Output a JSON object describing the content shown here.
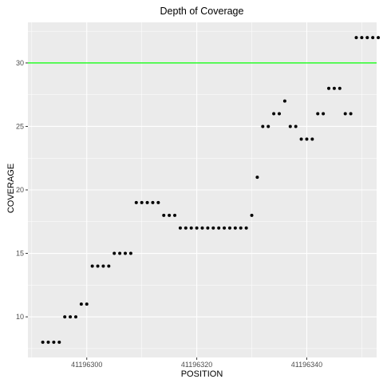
{
  "chart_data": {
    "type": "scatter",
    "title": "Depth of Coverage",
    "xlabel": "POSITION",
    "ylabel": "COVERAGE",
    "xlim": [
      41196289.3,
      41196352.7
    ],
    "ylim": [
      6.8,
      33.2
    ],
    "x_ticks": [
      41196300,
      41196320,
      41196340
    ],
    "x_tick_labels": [
      "41196300",
      "41196320",
      "41196340"
    ],
    "y_ticks": [
      10,
      15,
      20,
      25,
      30
    ],
    "y_tick_labels": [
      "10",
      "15",
      "20",
      "25",
      "30"
    ],
    "grid": true,
    "reference_line": {
      "y": 30,
      "color": "#00ff00"
    },
    "point_color": "#000000",
    "panel_background": "#ebebeb",
    "gridline_color": "#ffffff",
    "points": [
      [
        41196292,
        8
      ],
      [
        41196293,
        8
      ],
      [
        41196294,
        8
      ],
      [
        41196295,
        8
      ],
      [
        41196296,
        10
      ],
      [
        41196297,
        10
      ],
      [
        41196298,
        10
      ],
      [
        41196299,
        11
      ],
      [
        41196300,
        11
      ],
      [
        41196301,
        14
      ],
      [
        41196302,
        14
      ],
      [
        41196303,
        14
      ],
      [
        41196304,
        14
      ],
      [
        41196305,
        15
      ],
      [
        41196306,
        15
      ],
      [
        41196307,
        15
      ],
      [
        41196308,
        15
      ],
      [
        41196309,
        19
      ],
      [
        41196310,
        19
      ],
      [
        41196311,
        19
      ],
      [
        41196312,
        19
      ],
      [
        41196313,
        19
      ],
      [
        41196314,
        18
      ],
      [
        41196315,
        18
      ],
      [
        41196316,
        18
      ],
      [
        41196317,
        17
      ],
      [
        41196318,
        17
      ],
      [
        41196319,
        17
      ],
      [
        41196320,
        17
      ],
      [
        41196321,
        17
      ],
      [
        41196322,
        17
      ],
      [
        41196323,
        17
      ],
      [
        41196324,
        17
      ],
      [
        41196325,
        17
      ],
      [
        41196326,
        17
      ],
      [
        41196327,
        17
      ],
      [
        41196328,
        17
      ],
      [
        41196329,
        17
      ],
      [
        41196330,
        18
      ],
      [
        41196331,
        21
      ],
      [
        41196332,
        25
      ],
      [
        41196333,
        25
      ],
      [
        41196334,
        26
      ],
      [
        41196335,
        26
      ],
      [
        41196336,
        27
      ],
      [
        41196337,
        25
      ],
      [
        41196338,
        25
      ],
      [
        41196339,
        24
      ],
      [
        41196340,
        24
      ],
      [
        41196341,
        24
      ],
      [
        41196342,
        26
      ],
      [
        41196343,
        26
      ],
      [
        41196344,
        28
      ],
      [
        41196345,
        28
      ],
      [
        41196346,
        28
      ],
      [
        41196347,
        26
      ],
      [
        41196348,
        26
      ],
      [
        41196349,
        32
      ],
      [
        41196350,
        32
      ],
      [
        41196351,
        32
      ],
      [
        41196352,
        32
      ],
      [
        41196353,
        32
      ]
    ]
  }
}
